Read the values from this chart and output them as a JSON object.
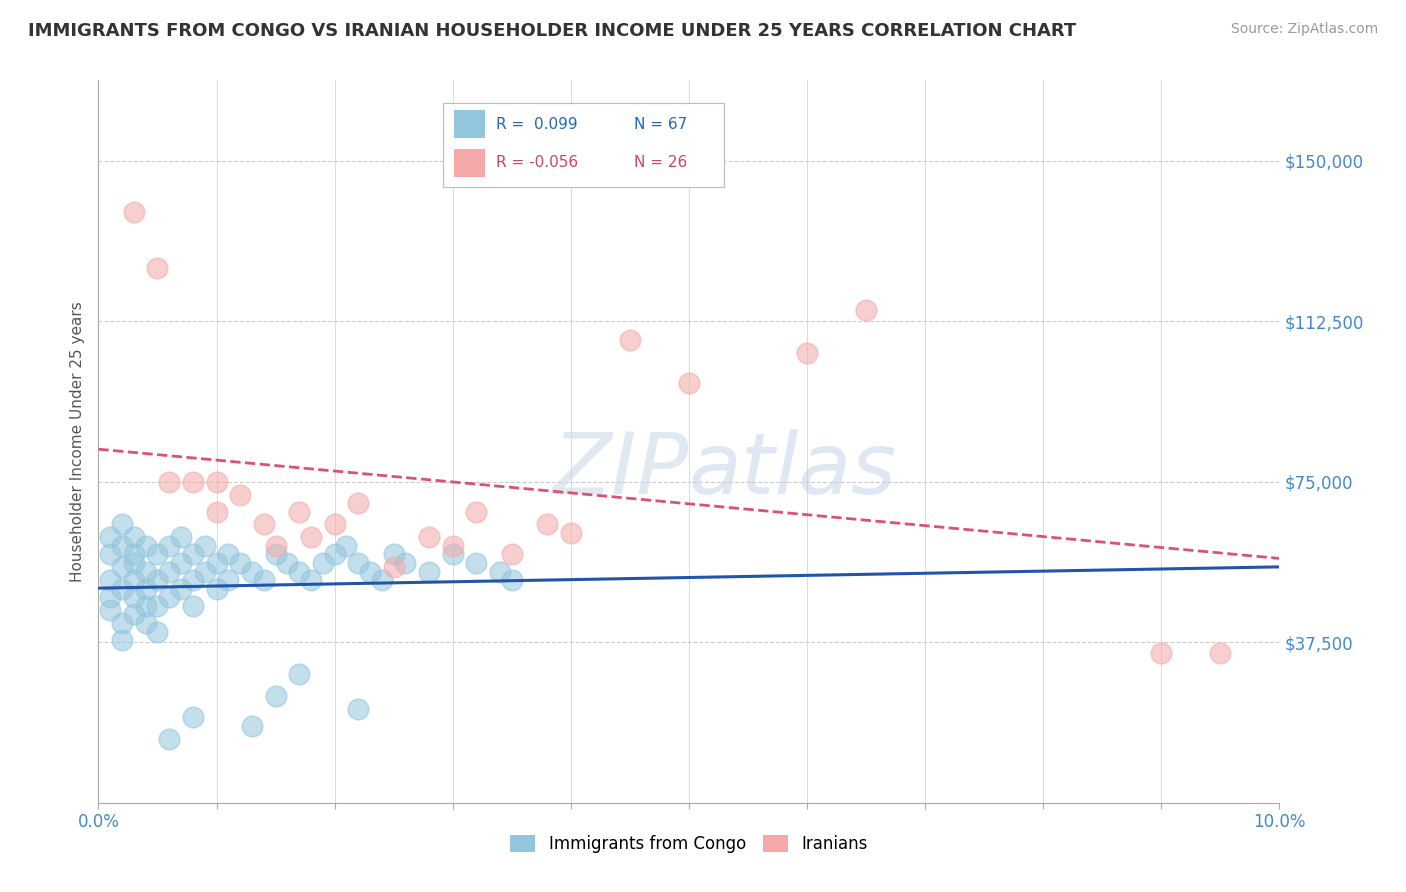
{
  "title": "IMMIGRANTS FROM CONGO VS IRANIAN HOUSEHOLDER INCOME UNDER 25 YEARS CORRELATION CHART",
  "source": "Source: ZipAtlas.com",
  "ylabel": "Householder Income Under 25 years",
  "xlim": [
    0.0,
    0.1
  ],
  "ylim": [
    0,
    168750
  ],
  "yticks": [
    0,
    37500,
    75000,
    112500,
    150000
  ],
  "ytick_labels": [
    "",
    "$37,500",
    "$75,000",
    "$112,500",
    "$150,000"
  ],
  "xticks": [
    0.0,
    0.01,
    0.02,
    0.03,
    0.04,
    0.05,
    0.06,
    0.07,
    0.08,
    0.09,
    0.1
  ],
  "xtick_labels": [
    "0.0%",
    "",
    "",
    "",
    "",
    "",
    "",
    "",
    "",
    "",
    "10.0%"
  ],
  "congo_color": "#92c5de",
  "iran_color": "#f4a9a8",
  "congo_line_color": "#2255aa",
  "iran_line_color": "#e05070",
  "watermark_color": "#d0dce8",
  "background_color": "#ffffff",
  "grid_color": "#cccccc",
  "congo_x": [
    0.001,
    0.001,
    0.001,
    0.001,
    0.001,
    0.002,
    0.002,
    0.002,
    0.002,
    0.002,
    0.002,
    0.003,
    0.003,
    0.003,
    0.003,
    0.003,
    0.003,
    0.004,
    0.004,
    0.004,
    0.004,
    0.004,
    0.005,
    0.005,
    0.005,
    0.005,
    0.006,
    0.006,
    0.006,
    0.007,
    0.007,
    0.007,
    0.008,
    0.008,
    0.008,
    0.009,
    0.009,
    0.01,
    0.01,
    0.011,
    0.011,
    0.012,
    0.013,
    0.014,
    0.015,
    0.016,
    0.017,
    0.018,
    0.019,
    0.02,
    0.021,
    0.022,
    0.023,
    0.024,
    0.025,
    0.026,
    0.028,
    0.03,
    0.032,
    0.034,
    0.035,
    0.017,
    0.015,
    0.022,
    0.013,
    0.008,
    0.006
  ],
  "congo_y": [
    52000,
    58000,
    45000,
    62000,
    48000,
    55000,
    60000,
    50000,
    42000,
    65000,
    38000,
    56000,
    48000,
    62000,
    52000,
    44000,
    58000,
    54000,
    46000,
    60000,
    50000,
    42000,
    58000,
    52000,
    46000,
    40000,
    60000,
    54000,
    48000,
    62000,
    56000,
    50000,
    58000,
    52000,
    46000,
    60000,
    54000,
    56000,
    50000,
    58000,
    52000,
    56000,
    54000,
    52000,
    58000,
    56000,
    54000,
    52000,
    56000,
    58000,
    60000,
    56000,
    54000,
    52000,
    58000,
    56000,
    54000,
    58000,
    56000,
    54000,
    52000,
    30000,
    25000,
    22000,
    18000,
    20000,
    15000
  ],
  "iran_x": [
    0.003,
    0.005,
    0.006,
    0.008,
    0.01,
    0.01,
    0.012,
    0.014,
    0.015,
    0.017,
    0.018,
    0.02,
    0.022,
    0.025,
    0.028,
    0.03,
    0.032,
    0.035,
    0.038,
    0.04,
    0.045,
    0.05,
    0.06,
    0.065,
    0.09,
    0.095
  ],
  "iran_y": [
    138000,
    125000,
    75000,
    75000,
    75000,
    68000,
    72000,
    65000,
    60000,
    68000,
    62000,
    65000,
    70000,
    55000,
    62000,
    60000,
    68000,
    58000,
    65000,
    63000,
    108000,
    98000,
    105000,
    115000,
    35000,
    35000
  ]
}
